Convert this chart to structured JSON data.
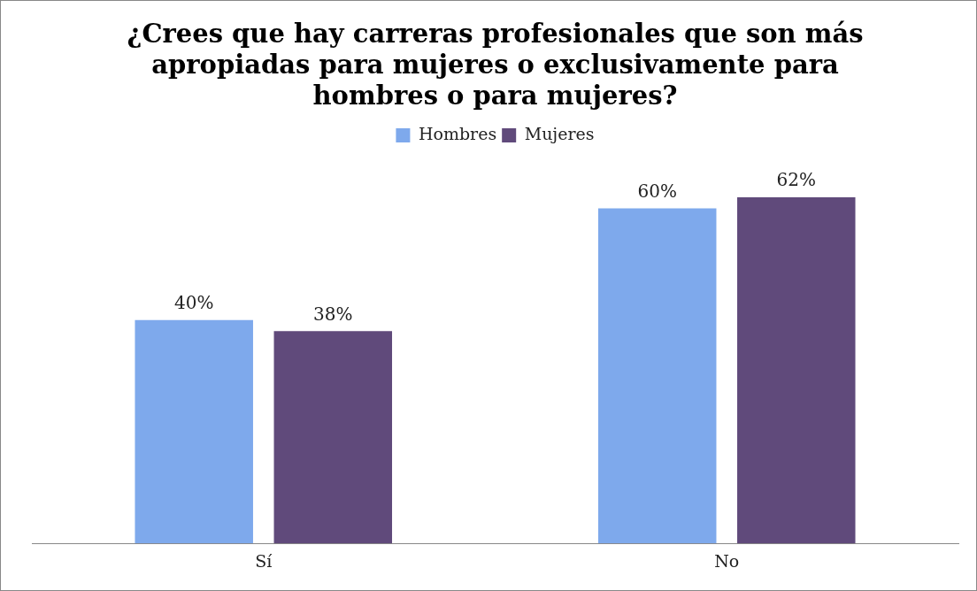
{
  "chart_data": {
    "type": "bar",
    "title": "¿Crees que hay carreras profesionales que son más apropiadas para mujeres o exclusivamente para hombres o para mujeres?",
    "categories": [
      "Sí",
      "No"
    ],
    "series": [
      {
        "name": "Hombres",
        "color": "#7ea9ec",
        "values": [
          40,
          60
        ],
        "value_labels": [
          "40%",
          "60%"
        ]
      },
      {
        "name": "Mujeres",
        "color": "#604a7b",
        "values": [
          38,
          62
        ],
        "value_labels": [
          "38%",
          "62%"
        ]
      }
    ],
    "legend": "top"
  }
}
